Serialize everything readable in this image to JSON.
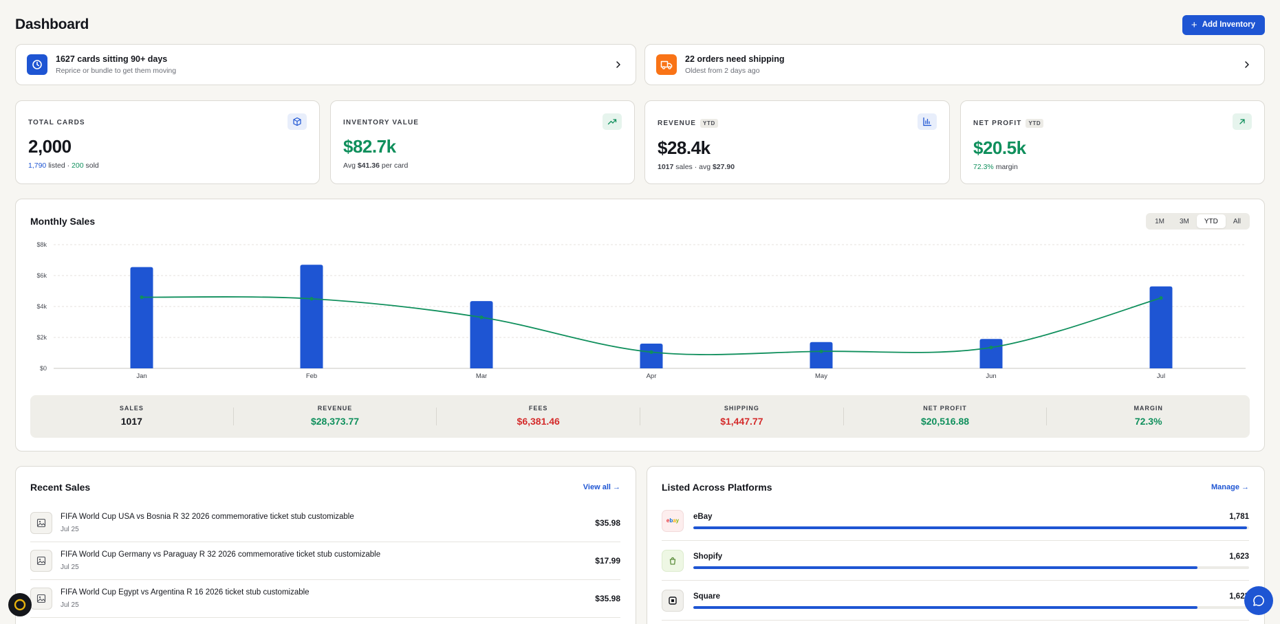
{
  "header": {
    "title": "Dashboard",
    "add_button_label": "Add Inventory"
  },
  "alerts": [
    {
      "title": "1627 cards sitting 90+ days",
      "subtitle": "Reprice or bundle to get them moving",
      "icon": "clock-icon",
      "color": "#1e55d3"
    },
    {
      "title": "22 orders need shipping",
      "subtitle": "Oldest from 2 days ago",
      "icon": "truck-icon",
      "color": "#f97316"
    }
  ],
  "stats": {
    "total_cards": {
      "label": "TOTAL CARDS",
      "value": "2,000",
      "listed": "1,790",
      "listed_text": " listed · ",
      "sold": "200",
      "sold_text": " sold",
      "icon": "box-icon"
    },
    "inventory_value": {
      "label": "INVENTORY VALUE",
      "value": "$82.7k",
      "avg_prefix": "Avg ",
      "avg": "$41.36",
      "avg_suffix": " per card",
      "icon": "trending-up-icon"
    },
    "revenue": {
      "label": "REVENUE",
      "badge": "YTD",
      "value": "$28.4k",
      "sales": "1017",
      "sales_text": " sales · avg ",
      "avg": "$27.90",
      "icon": "bar-chart-icon"
    },
    "net_profit": {
      "label": "NET PROFIT",
      "badge": "YTD",
      "value": "$20.5k",
      "margin": "72.3%",
      "margin_text": " margin",
      "icon": "arrow-up-right-icon"
    }
  },
  "monthly_sales": {
    "title": "Monthly Sales",
    "ranges": [
      "1M",
      "3M",
      "YTD",
      "All"
    ],
    "active_range": "YTD",
    "totals": [
      {
        "label": "SALES",
        "value": "1017",
        "color": "#14161c"
      },
      {
        "label": "REVENUE",
        "value": "$28,373.77",
        "color": "#0f8f5c"
      },
      {
        "label": "FEES",
        "value": "$6,381.46",
        "color": "#d42b2b"
      },
      {
        "label": "SHIPPING",
        "value": "$1,447.77",
        "color": "#d42b2b"
      },
      {
        "label": "NET PROFIT",
        "value": "$20,516.88",
        "color": "#0f8f5c"
      },
      {
        "label": "MARGIN",
        "value": "72.3%",
        "color": "#0f8f5c"
      }
    ]
  },
  "chart_data": {
    "type": "bar",
    "categories": [
      "Jan",
      "Feb",
      "Mar",
      "Apr",
      "May",
      "Jun",
      "Jul"
    ],
    "series": [
      {
        "type": "bar",
        "values": [
          6550,
          6700,
          4350,
          1600,
          1700,
          1900,
          5300
        ],
        "color": "#1e55d3"
      },
      {
        "type": "line",
        "values": [
          4600,
          4500,
          3300,
          1050,
          1100,
          1350,
          4550
        ],
        "color": "#0f8f5c"
      }
    ],
    "yticks": [
      "$0",
      "$2k",
      "$4k",
      "$6k",
      "$8k"
    ],
    "ylim": [
      0,
      8000
    ],
    "grid": true
  },
  "recent_sales": {
    "title": "Recent Sales",
    "link": "View all →",
    "items": [
      {
        "name": "FIFA World Cup USA vs Bosnia R 32 2026 commemorative ticket stub customizable",
        "date": "Jul 25",
        "price": "$35.98"
      },
      {
        "name": "FIFA World Cup Germany vs Paraguay R 32 2026 commemorative ticket stub customizable",
        "date": "Jul 25",
        "price": "$17.99"
      },
      {
        "name": "FIFA World Cup Egypt vs Argentina R 16 2026 ticket stub customizable",
        "date": "Jul 25",
        "price": "$35.98"
      }
    ]
  },
  "platforms": {
    "title": "Listed Across Platforms",
    "link": "Manage →",
    "items": [
      {
        "name": "eBay",
        "count": "1,781",
        "fraction": 0.9965,
        "logo": "ebay"
      },
      {
        "name": "Shopify",
        "count": "1,623",
        "fraction": 0.9075,
        "logo": "shopify"
      },
      {
        "name": "Square",
        "count": "1,623",
        "fraction": 0.9075,
        "logo": "square"
      }
    ]
  }
}
